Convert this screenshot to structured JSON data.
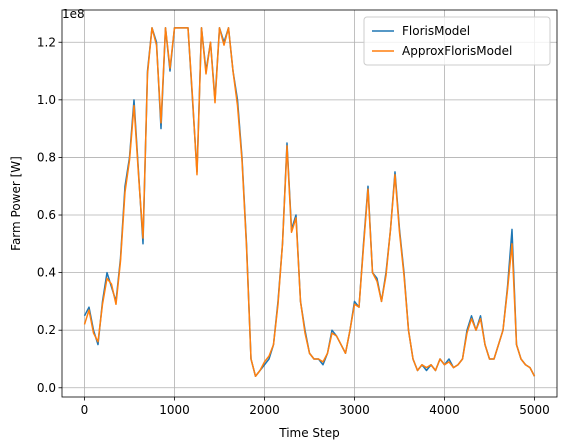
{
  "chart_data": {
    "type": "line",
    "y_offset_label": "1e8",
    "xlabel": "Time Step",
    "ylabel": "Farm Power [W]",
    "x": [
      0,
      50,
      100,
      150,
      200,
      250,
      300,
      350,
      400,
      450,
      500,
      550,
      600,
      650,
      700,
      750,
      800,
      850,
      900,
      950,
      1000,
      1050,
      1100,
      1150,
      1200,
      1250,
      1300,
      1350,
      1400,
      1450,
      1500,
      1550,
      1600,
      1650,
      1700,
      1750,
      1800,
      1850,
      1900,
      1950,
      2000,
      2050,
      2100,
      2150,
      2200,
      2250,
      2300,
      2350,
      2400,
      2450,
      2500,
      2550,
      2600,
      2650,
      2700,
      2750,
      2800,
      2850,
      2900,
      2950,
      3000,
      3050,
      3100,
      3150,
      3200,
      3250,
      3300,
      3350,
      3400,
      3450,
      3500,
      3550,
      3600,
      3650,
      3700,
      3750,
      3800,
      3850,
      3900,
      3950,
      4000,
      4050,
      4100,
      4150,
      4200,
      4250,
      4300,
      4350,
      4400,
      4450,
      4500,
      4550,
      4600,
      4650,
      4700,
      4750,
      4800,
      4850,
      4900,
      4950,
      5000
    ],
    "series": [
      {
        "name": "FlorisModel",
        "color": "#1f77b4",
        "values": [
          0.25,
          0.28,
          0.2,
          0.15,
          0.3,
          0.4,
          0.35,
          0.3,
          0.45,
          0.7,
          0.8,
          1.0,
          0.75,
          0.5,
          1.1,
          1.25,
          1.2,
          0.9,
          1.25,
          1.1,
          1.25,
          1.25,
          1.25,
          1.25,
          1.0,
          0.75,
          1.25,
          1.1,
          1.2,
          1.0,
          1.25,
          1.2,
          1.25,
          1.1,
          1.0,
          0.8,
          0.5,
          0.1,
          0.04,
          0.06,
          0.08,
          0.1,
          0.15,
          0.3,
          0.5,
          0.85,
          0.55,
          0.6,
          0.3,
          0.2,
          0.12,
          0.1,
          0.1,
          0.08,
          0.12,
          0.2,
          0.18,
          0.15,
          0.12,
          0.2,
          0.3,
          0.28,
          0.5,
          0.7,
          0.4,
          0.38,
          0.3,
          0.4,
          0.55,
          0.75,
          0.55,
          0.4,
          0.2,
          0.1,
          0.06,
          0.08,
          0.06,
          0.08,
          0.06,
          0.1,
          0.08,
          0.1,
          0.07,
          0.08,
          0.1,
          0.2,
          0.25,
          0.2,
          0.25,
          0.15,
          0.1,
          0.1,
          0.15,
          0.2,
          0.35,
          0.55,
          0.15,
          0.1,
          0.08,
          0.07,
          0.04
        ]
      },
      {
        "name": "ApproxFlorisModel",
        "color": "#ff7f0e",
        "values": [
          0.22,
          0.27,
          0.19,
          0.16,
          0.29,
          0.38,
          0.36,
          0.29,
          0.44,
          0.68,
          0.79,
          0.98,
          0.74,
          0.52,
          1.09,
          1.25,
          1.19,
          0.92,
          1.25,
          1.11,
          1.25,
          1.25,
          1.25,
          1.25,
          1.01,
          0.74,
          1.25,
          1.09,
          1.2,
          0.99,
          1.25,
          1.19,
          1.25,
          1.1,
          0.98,
          0.79,
          0.49,
          0.1,
          0.04,
          0.06,
          0.09,
          0.11,
          0.15,
          0.29,
          0.5,
          0.84,
          0.54,
          0.59,
          0.3,
          0.19,
          0.12,
          0.1,
          0.1,
          0.09,
          0.12,
          0.19,
          0.18,
          0.15,
          0.12,
          0.2,
          0.29,
          0.28,
          0.49,
          0.69,
          0.4,
          0.37,
          0.3,
          0.39,
          0.55,
          0.74,
          0.54,
          0.39,
          0.2,
          0.1,
          0.06,
          0.08,
          0.07,
          0.08,
          0.06,
          0.1,
          0.08,
          0.09,
          0.07,
          0.08,
          0.1,
          0.19,
          0.24,
          0.2,
          0.24,
          0.15,
          0.1,
          0.1,
          0.15,
          0.2,
          0.34,
          0.5,
          0.15,
          0.1,
          0.08,
          0.07,
          0.04
        ]
      }
    ],
    "xlim": [
      -250,
      5250
    ],
    "xticks": [
      0,
      1000,
      2000,
      3000,
      4000,
      5000
    ],
    "ylim": [
      -0.032,
      1.312
    ],
    "yticks": [
      {
        "value": 0,
        "label": "0.0"
      },
      0.2,
      0.4,
      0.6,
      0.8,
      {
        "value": 1,
        "label": "1.0"
      },
      1.2
    ],
    "grid": true,
    "legend": "upper right"
  }
}
